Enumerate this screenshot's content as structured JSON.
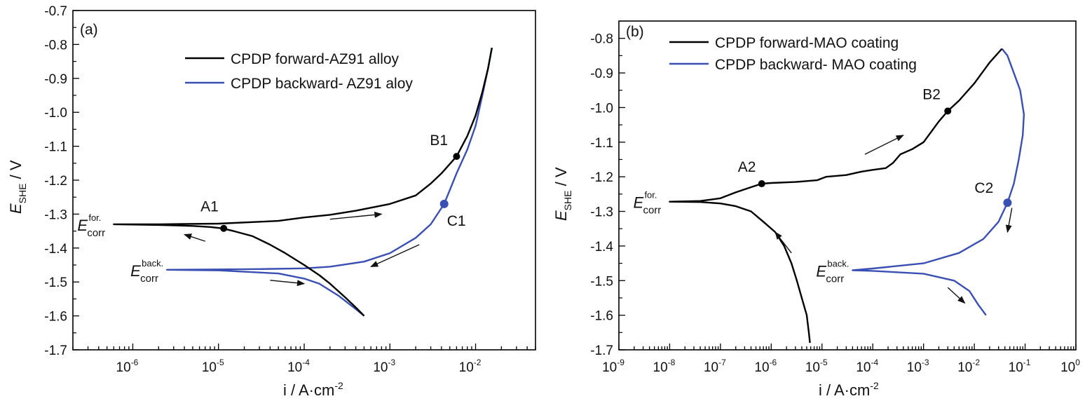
{
  "colors": {
    "forward": "#000000",
    "backward": "#3a4fb2",
    "axis": "#000000"
  },
  "chart_data": [
    {
      "panel": "(a)",
      "type": "line",
      "x_scale": "log",
      "xlim": [
        2e-07,
        0.05
      ],
      "ylim": [
        -1.7,
        -0.7
      ],
      "xlabel": "i / A·cm",
      "xlabel_sup": "-2",
      "ylabel_main": "E",
      "ylabel_sub": "SHE",
      "ylabel_rest": " / V",
      "x_tick_values": [
        1e-06,
        1e-05,
        0.0001,
        0.001,
        0.01
      ],
      "x_tick_labels": [
        {
          "base": "10",
          "exp": "-6"
        },
        {
          "base": "10",
          "exp": "-5"
        },
        {
          "base": "10",
          "exp": "-4"
        },
        {
          "base": "10",
          "exp": "-3"
        },
        {
          "base": "10",
          "exp": "-2"
        }
      ],
      "y_tick_values": [
        -0.7,
        -0.8,
        -0.9,
        -1.0,
        -1.1,
        -1.2,
        -1.3,
        -1.4,
        -1.5,
        -1.6,
        -1.7
      ],
      "y_tick_labels": [
        "-0.7",
        "-0.8",
        "-0.9",
        "-1.0",
        "-1.1",
        "-1.2",
        "-1.3",
        "-1.4",
        "-1.5",
        "-1.6",
        "-1.7"
      ],
      "legend": [
        {
          "label": "CPDP forward-AZ91 alloy",
          "series": "forward"
        },
        {
          "label": "CPDP backward- AZ91 aloy",
          "series": "backward"
        }
      ],
      "series": [
        {
          "name": "CPDP forward-AZ91 alloy",
          "key": "forward",
          "points": [
            [
              0.0005,
              -1.6
            ],
            [
              0.0004,
              -1.575
            ],
            [
              0.0003,
              -1.545
            ],
            [
              0.0002,
              -1.505
            ],
            [
              0.00015,
              -1.48
            ],
            [
              0.0001,
              -1.45
            ],
            [
              6e-05,
              -1.415
            ],
            [
              4e-05,
              -1.39
            ],
            [
              2.5e-05,
              -1.365
            ],
            [
              1.5e-05,
              -1.35
            ],
            [
              1.1e-05,
              -1.342
            ],
            [
              8e-06,
              -1.338
            ],
            [
              5e-06,
              -1.335
            ],
            [
              2e-06,
              -1.332
            ],
            [
              6e-07,
              -1.33
            ],
            [
              2e-06,
              -1.33
            ],
            [
              1e-05,
              -1.328
            ],
            [
              5e-05,
              -1.32
            ],
            [
              0.0001,
              -1.31
            ],
            [
              0.0002,
              -1.302
            ],
            [
              0.0004,
              -1.29
            ],
            [
              0.001,
              -1.27
            ],
            [
              0.002,
              -1.245
            ],
            [
              0.003,
              -1.21
            ],
            [
              0.004,
              -1.18
            ],
            [
              0.006,
              -1.13
            ],
            [
              0.008,
              -1.07
            ],
            [
              0.01,
              -1.01
            ],
            [
              0.012,
              -0.94
            ],
            [
              0.014,
              -0.87
            ],
            [
              0.0155,
              -0.81
            ]
          ]
        },
        {
          "name": "CPDP backward- AZ91 aloy",
          "key": "backward",
          "points": [
            [
              0.0155,
              -0.81
            ],
            [
              0.014,
              -0.87
            ],
            [
              0.012,
              -0.95
            ],
            [
              0.01,
              -1.04
            ],
            [
              0.008,
              -1.11
            ],
            [
              0.006,
              -1.18
            ],
            [
              0.0043,
              -1.27
            ],
            [
              0.003,
              -1.33
            ],
            [
              0.002,
              -1.37
            ],
            [
              0.001,
              -1.415
            ],
            [
              0.0005,
              -1.44
            ],
            [
              0.0002,
              -1.455
            ],
            [
              0.0001,
              -1.46
            ],
            [
              3e-05,
              -1.462
            ],
            [
              1e-05,
              -1.463
            ],
            [
              2.5e-06,
              -1.464
            ],
            [
              1e-05,
              -1.466
            ],
            [
              5e-05,
              -1.475
            ],
            [
              0.0001,
              -1.49
            ],
            [
              0.00015,
              -1.505
            ],
            [
              0.00025,
              -1.54
            ],
            [
              0.0004,
              -1.58
            ],
            [
              0.0005,
              -1.6
            ]
          ]
        }
      ],
      "markers": [
        {
          "label": "A1",
          "x": 1.15e-05,
          "y": -1.342,
          "series": "forward"
        },
        {
          "label": "B1",
          "x": 0.006,
          "y": -1.13,
          "series": "forward"
        },
        {
          "label": "C1",
          "x": 0.0043,
          "y": -1.27,
          "series": "backward"
        }
      ],
      "ecorr": [
        {
          "main": "E",
          "sub": "corr",
          "sup": "for.",
          "x": 6e-07,
          "y": -1.33
        },
        {
          "main": "E",
          "sub": "corr",
          "sup": "back.",
          "x": 2.5e-06,
          "y": -1.464
        }
      ],
      "arrows": [
        {
          "from": [
            0.0002,
            -1.315
          ],
          "to": [
            0.0008,
            -1.3
          ]
        },
        {
          "from": [
            7e-06,
            -1.38
          ],
          "to": [
            4e-06,
            -1.36
          ]
        },
        {
          "from": [
            0.0022,
            -1.39
          ],
          "to": [
            0.0006,
            -1.455
          ]
        },
        {
          "from": [
            4e-05,
            -1.495
          ],
          "to": [
            0.0001,
            -1.505
          ]
        }
      ]
    },
    {
      "panel": "(b)",
      "type": "line",
      "x_scale": "log",
      "xlim": [
        1e-09,
        1
      ],
      "ylim": [
        -1.7,
        -0.75
      ],
      "xlabel": "i / A·cm",
      "xlabel_sup": "-2",
      "ylabel_main": "E",
      "ylabel_sub": "SHE",
      "ylabel_rest": " / V",
      "x_tick_values": [
        1e-09,
        1e-08,
        1e-07,
        1e-06,
        1e-05,
        0.0001,
        0.001,
        0.01,
        0.1,
        1
      ],
      "x_tick_labels": [
        {
          "base": "10",
          "exp": "-9"
        },
        {
          "base": "10",
          "exp": "-8"
        },
        {
          "base": "10",
          "exp": "-7"
        },
        {
          "base": "10",
          "exp": "-6"
        },
        {
          "base": "10",
          "exp": "-5"
        },
        {
          "base": "10",
          "exp": "-4"
        },
        {
          "base": "10",
          "exp": "-3"
        },
        {
          "base": "10",
          "exp": "-2"
        },
        {
          "base": "10",
          "exp": "-1"
        },
        {
          "base": "10",
          "exp": "0"
        }
      ],
      "y_tick_values": [
        -0.8,
        -0.9,
        -1.0,
        -1.1,
        -1.2,
        -1.3,
        -1.4,
        -1.5,
        -1.6,
        -1.7
      ],
      "y_tick_labels": [
        "-0.8",
        "-0.9",
        "-1.0",
        "-1.1",
        "-1.2",
        "-1.3",
        "-1.4",
        "-1.5",
        "-1.6",
        "-1.7"
      ],
      "legend": [
        {
          "label": "CPDP forward-MAO coating",
          "series": "forward"
        },
        {
          "label": "CPDP backward- MAO coating",
          "series": "backward"
        }
      ],
      "series": [
        {
          "name": "CPDP forward-MAO coating",
          "key": "forward",
          "points": [
            [
              5.8e-06,
              -1.68
            ],
            [
              5.5e-06,
              -1.65
            ],
            [
              5e-06,
              -1.6
            ],
            [
              4e-06,
              -1.55
            ],
            [
              3.2e-06,
              -1.5
            ],
            [
              2.5e-06,
              -1.45
            ],
            [
              1.8e-06,
              -1.4
            ],
            [
              1.2e-06,
              -1.36
            ],
            [
              7e-07,
              -1.33
            ],
            [
              4e-07,
              -1.3
            ],
            [
              2e-07,
              -1.285
            ],
            [
              1e-07,
              -1.277
            ],
            [
              4e-08,
              -1.273
            ],
            [
              1e-08,
              -1.272
            ],
            [
              4e-08,
              -1.27
            ],
            [
              1e-07,
              -1.262
            ],
            [
              2e-07,
              -1.245
            ],
            [
              4e-07,
              -1.23
            ],
            [
              6.5e-07,
              -1.22
            ],
            [
              1e-06,
              -1.218
            ],
            [
              3e-06,
              -1.215
            ],
            [
              8e-06,
              -1.21
            ],
            [
              1.2e-05,
              -1.2
            ],
            [
              3e-05,
              -1.195
            ],
            [
              6e-05,
              -1.185
            ],
            [
              0.0001,
              -1.18
            ],
            [
              0.00018,
              -1.175
            ],
            [
              0.00025,
              -1.16
            ],
            [
              0.00035,
              -1.135
            ],
            [
              0.0006,
              -1.12
            ],
            [
              0.001,
              -1.1
            ],
            [
              0.002,
              -1.04
            ],
            [
              0.003,
              -1.01
            ],
            [
              0.005,
              -0.98
            ],
            [
              0.01,
              -0.93
            ],
            [
              0.02,
              -0.87
            ],
            [
              0.035,
              -0.83
            ]
          ]
        },
        {
          "name": "CPDP backward- MAO coating",
          "key": "backward",
          "points": [
            [
              0.035,
              -0.83
            ],
            [
              0.045,
              -0.85
            ],
            [
              0.06,
              -0.9
            ],
            [
              0.08,
              -0.95
            ],
            [
              0.095,
              -1.02
            ],
            [
              0.09,
              -1.08
            ],
            [
              0.075,
              -1.15
            ],
            [
              0.06,
              -1.22
            ],
            [
              0.045,
              -1.275
            ],
            [
              0.03,
              -1.33
            ],
            [
              0.015,
              -1.38
            ],
            [
              0.005,
              -1.42
            ],
            [
              0.001,
              -1.45
            ],
            [
              0.0001,
              -1.465
            ],
            [
              4e-05,
              -1.47
            ],
            [
              0.0001,
              -1.472
            ],
            [
              0.001,
              -1.48
            ],
            [
              0.004,
              -1.5
            ],
            [
              0.008,
              -1.53
            ],
            [
              0.012,
              -1.57
            ],
            [
              0.017,
              -1.6
            ]
          ]
        }
      ],
      "markers": [
        {
          "label": "A2",
          "x": 6.5e-07,
          "y": -1.22,
          "series": "forward"
        },
        {
          "label": "B2",
          "x": 0.003,
          "y": -1.01,
          "series": "forward"
        },
        {
          "label": "C2",
          "x": 0.045,
          "y": -1.275,
          "series": "backward"
        }
      ],
      "ecorr": [
        {
          "main": "E",
          "sub": "corr",
          "sup": "for.",
          "x": 1e-08,
          "y": -1.272
        },
        {
          "main": "E",
          "sub": "corr",
          "sup": "back.",
          "x": 4e-05,
          "y": -1.47
        }
      ],
      "arrows": [
        {
          "from": [
            7e-05,
            -1.135
          ],
          "to": [
            0.0004,
            -1.08
          ]
        },
        {
          "from": [
            2.5e-06,
            -1.42
          ],
          "to": [
            1.2e-06,
            -1.36
          ]
        },
        {
          "from": [
            0.055,
            -1.29
          ],
          "to": [
            0.045,
            -1.36
          ]
        },
        {
          "from": [
            0.003,
            -1.52
          ],
          "to": [
            0.0065,
            -1.565
          ]
        }
      ]
    }
  ]
}
